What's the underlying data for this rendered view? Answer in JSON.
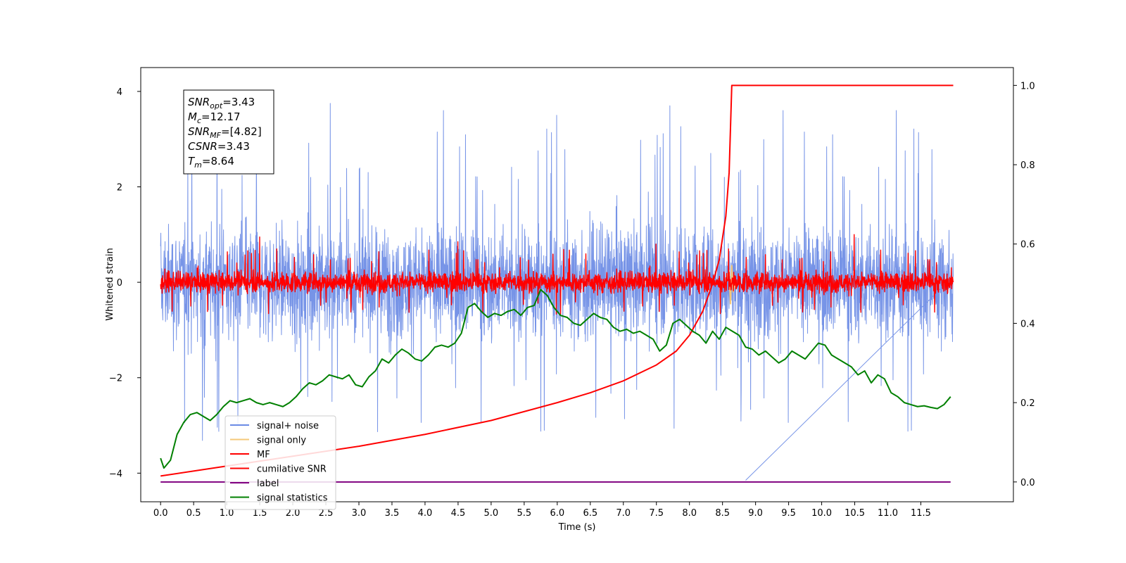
{
  "chart_data": {
    "type": "line",
    "xlabel": "Time (s)",
    "ylabel": "Whitened strain",
    "xlim": [
      -0.3,
      12.9
    ],
    "ylim_left": [
      -4.6,
      4.5
    ],
    "ylim_right": [
      -0.05,
      1.045
    ],
    "x_ticks": [
      0.0,
      0.5,
      1.0,
      1.5,
      2.0,
      2.5,
      3.0,
      3.5,
      4.0,
      4.5,
      5.0,
      5.5,
      6.0,
      6.5,
      7.0,
      7.5,
      8.0,
      8.5,
      9.0,
      9.5,
      10.0,
      10.5,
      11.0,
      11.5
    ],
    "x_tick_labels": [
      "0.0",
      "0.5",
      "1.0",
      "1.5",
      "2.0",
      "2.5",
      "3.0",
      "3.5",
      "4.0",
      "4.5",
      "5.0",
      "5.5",
      "6.0",
      "6.5",
      "7.0",
      "7.5",
      "8.0",
      "8.5",
      "9.0",
      "9.5",
      "10.0",
      "10.5",
      "11.0",
      "11.5"
    ],
    "y_left_ticks": [
      4,
      2,
      0,
      -2,
      -4
    ],
    "y_left_tick_labels": [
      "4",
      "2",
      "0",
      "−2",
      "−4"
    ],
    "y_right_ticks": [
      1.0,
      0.8,
      0.6,
      0.4,
      0.2,
      0.0
    ],
    "y_right_tick_labels": [
      "1.0",
      "0.8",
      "0.6",
      "0.4",
      "0.2",
      "0.0"
    ],
    "grid": false,
    "legend_position": "lower-left",
    "legend": [
      {
        "label": "signal+ noise",
        "color": "#6b8be5"
      },
      {
        "label": "signal only",
        "color": "#f5c87a"
      },
      {
        "label": "MF",
        "color": "#ff0000"
      },
      {
        "label": "cumilative SNR",
        "color": "#ff0000"
      },
      {
        "label": "label",
        "color": "#800080"
      },
      {
        "label": "signal statistics",
        "color": "#008000"
      }
    ],
    "series": [
      {
        "name": "signal+ noise",
        "axis": "left",
        "color": "#6b8be5",
        "kind": "noise",
        "x_range": [
          0.0,
          11.99
        ],
        "center": 0.0,
        "typical_band": [
          -1.7,
          2.5
        ],
        "peak_values": [
          4.0,
          3.75,
          3.6,
          3.5,
          3.7,
          3.6,
          3.6
        ],
        "minimum": {
          "x": 8.85,
          "y": -4.15
        }
      },
      {
        "name": "signal only",
        "axis": "left",
        "color": "#f5c87a",
        "kind": "burst",
        "x": [
          8.55,
          8.6,
          8.62,
          8.64,
          8.66,
          8.7
        ],
        "y": [
          0.0,
          0.25,
          -0.45,
          0.35,
          -0.2,
          0.0
        ]
      },
      {
        "name": "MF",
        "axis": "left",
        "color": "#ff0000",
        "kind": "noise",
        "x_range": [
          0.0,
          11.99
        ],
        "center": 0.0,
        "typical_band": [
          -0.35,
          0.55
        ],
        "peak_values": [
          0.95,
          0.85,
          0.8,
          1.0
        ]
      },
      {
        "name": "cumilative SNR",
        "axis": "right",
        "color": "#ff0000",
        "kind": "line",
        "x": [
          0.0,
          1.0,
          2.0,
          3.0,
          4.0,
          5.0,
          6.0,
          6.5,
          7.0,
          7.5,
          7.8,
          8.0,
          8.2,
          8.35,
          8.45,
          8.55,
          8.6,
          8.64,
          9.0,
          10.0,
          11.0,
          11.99
        ],
        "y": [
          0.015,
          0.04,
          0.065,
          0.09,
          0.12,
          0.155,
          0.2,
          0.225,
          0.255,
          0.295,
          0.33,
          0.37,
          0.43,
          0.5,
          0.56,
          0.67,
          0.78,
          1.0,
          1.0,
          1.0,
          1.0,
          1.0
        ]
      },
      {
        "name": "label",
        "axis": "right",
        "color": "#800080",
        "kind": "line",
        "x": [
          0.0,
          11.95
        ],
        "y": [
          0.0,
          0.0
        ]
      },
      {
        "name": "signal statistics",
        "axis": "right",
        "color": "#008000",
        "kind": "line",
        "x": [
          0.0,
          0.05,
          0.15,
          0.25,
          0.35,
          0.45,
          0.55,
          0.65,
          0.75,
          0.85,
          0.95,
          1.05,
          1.15,
          1.25,
          1.35,
          1.45,
          1.55,
          1.65,
          1.75,
          1.85,
          1.95,
          2.05,
          2.15,
          2.25,
          2.35,
          2.45,
          2.55,
          2.65,
          2.75,
          2.85,
          2.95,
          3.05,
          3.15,
          3.25,
          3.35,
          3.45,
          3.55,
          3.65,
          3.75,
          3.85,
          3.95,
          4.05,
          4.15,
          4.25,
          4.35,
          4.45,
          4.55,
          4.65,
          4.75,
          4.85,
          4.95,
          5.05,
          5.15,
          5.25,
          5.35,
          5.45,
          5.55,
          5.65,
          5.75,
          5.85,
          5.95,
          6.05,
          6.15,
          6.25,
          6.35,
          6.45,
          6.55,
          6.65,
          6.75,
          6.85,
          6.95,
          7.05,
          7.15,
          7.25,
          7.35,
          7.45,
          7.55,
          7.65,
          7.75,
          7.85,
          7.95,
          8.05,
          8.15,
          8.25,
          8.35,
          8.45,
          8.55,
          8.65,
          8.75,
          8.85,
          8.95,
          9.05,
          9.15,
          9.25,
          9.35,
          9.45,
          9.55,
          9.65,
          9.75,
          9.85,
          9.95,
          10.05,
          10.15,
          10.25,
          10.35,
          10.45,
          10.55,
          10.65,
          10.75,
          10.85,
          10.95,
          11.05,
          11.15,
          11.25,
          11.35,
          11.45,
          11.55,
          11.65,
          11.75,
          11.85,
          11.95
        ],
        "y": [
          0.06,
          0.035,
          0.055,
          0.12,
          0.15,
          0.17,
          0.175,
          0.165,
          0.155,
          0.17,
          0.19,
          0.205,
          0.2,
          0.205,
          0.21,
          0.2,
          0.195,
          0.2,
          0.195,
          0.19,
          0.2,
          0.215,
          0.235,
          0.25,
          0.245,
          0.255,
          0.27,
          0.265,
          0.26,
          0.27,
          0.245,
          0.24,
          0.265,
          0.28,
          0.31,
          0.3,
          0.32,
          0.335,
          0.325,
          0.31,
          0.305,
          0.32,
          0.34,
          0.345,
          0.34,
          0.35,
          0.375,
          0.44,
          0.45,
          0.43,
          0.415,
          0.425,
          0.42,
          0.43,
          0.435,
          0.42,
          0.44,
          0.445,
          0.485,
          0.47,
          0.44,
          0.42,
          0.415,
          0.4,
          0.395,
          0.41,
          0.425,
          0.415,
          0.41,
          0.39,
          0.38,
          0.385,
          0.375,
          0.38,
          0.37,
          0.36,
          0.33,
          0.345,
          0.4,
          0.41,
          0.395,
          0.38,
          0.37,
          0.35,
          0.38,
          0.36,
          0.39,
          0.38,
          0.37,
          0.34,
          0.335,
          0.32,
          0.33,
          0.315,
          0.3,
          0.31,
          0.33,
          0.32,
          0.31,
          0.33,
          0.35,
          0.345,
          0.32,
          0.31,
          0.3,
          0.29,
          0.27,
          0.28,
          0.25,
          0.27,
          0.26,
          0.225,
          0.215,
          0.2,
          0.195,
          0.19,
          0.192,
          0.188,
          0.185,
          0.195,
          0.215
        ]
      }
    ],
    "info_box": [
      {
        "sym": "SNR",
        "sub": "opt",
        "val": "=3.43"
      },
      {
        "sym": "M",
        "sub": "c",
        "val": "=12.17"
      },
      {
        "sym": "SNR",
        "sub": "MF",
        "val": "=[4.82]"
      },
      {
        "sym": "CSNR",
        "sub": "",
        "val": "=3.43"
      },
      {
        "sym": "T",
        "sub": "m",
        "val": "=8.64"
      }
    ]
  }
}
